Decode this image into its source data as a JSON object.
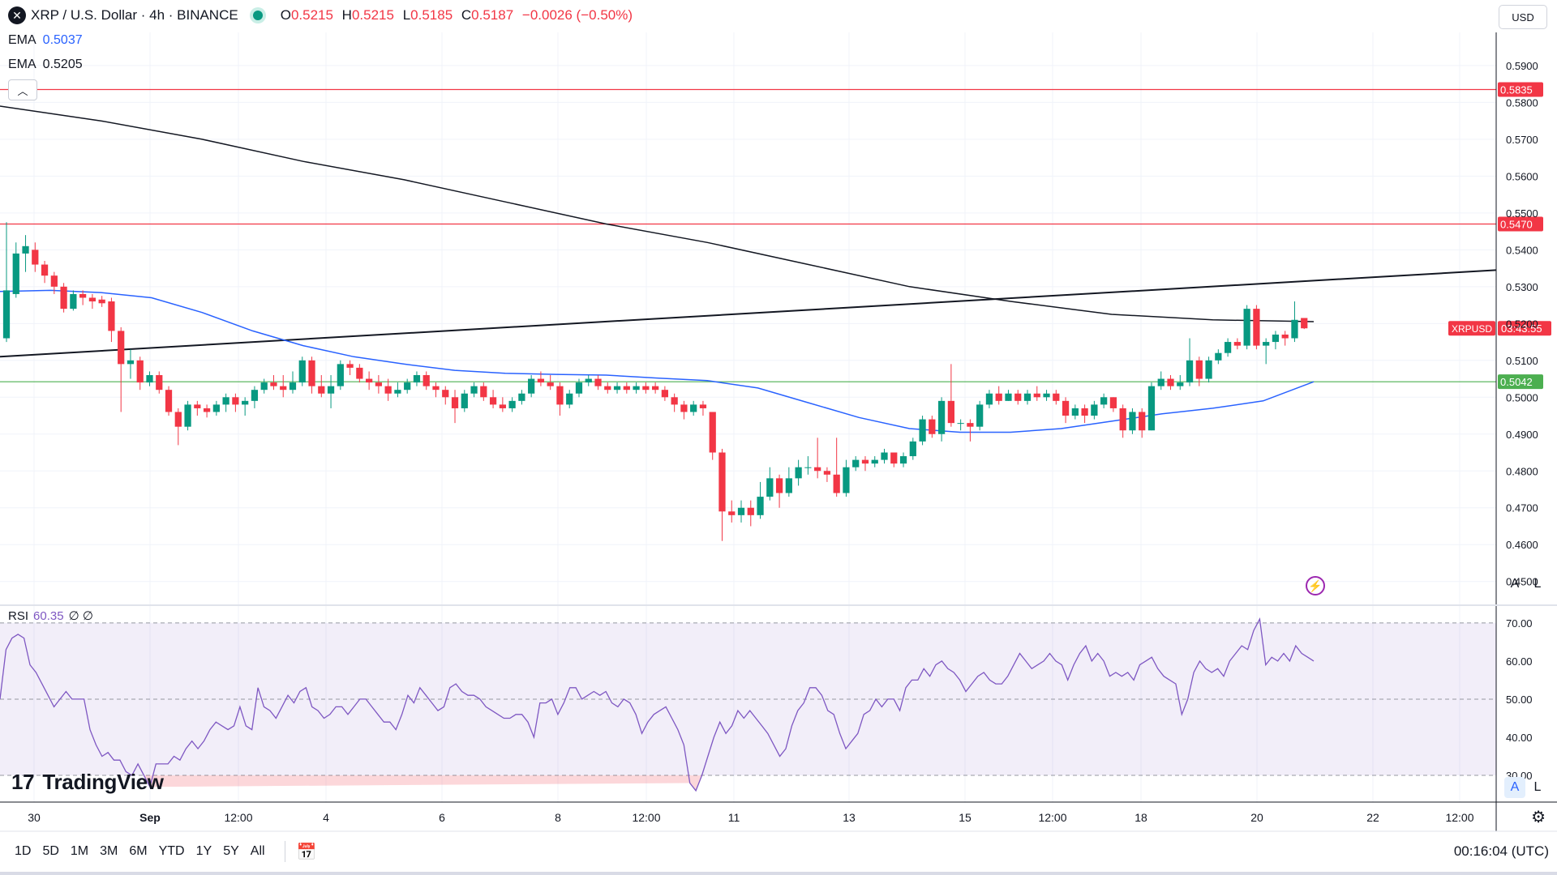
{
  "header": {
    "symbol_icon": "x-xrp-icon",
    "title": "XRP / U.S. Dollar · 4h · BINANCE",
    "open_label": "O",
    "open": "0.5215",
    "high_label": "H",
    "high": "0.5215",
    "low_label": "L",
    "low": "0.5185",
    "close_label": "C",
    "close": "0.5187",
    "change": "−0.0026 (−0.50%)",
    "currency": "USD"
  },
  "indicators": {
    "ema1": {
      "name": "EMA",
      "value": "0.5037",
      "color": "#2962ff"
    },
    "ema2": {
      "name": "EMA",
      "value": "0.5205",
      "color": "#131722"
    }
  },
  "rsi_legend": {
    "name": "RSI",
    "value": "60.35",
    "extra1": "∅",
    "extra2": "∅"
  },
  "price_labels": {
    "r1": "0.5835",
    "r2": "0.5470",
    "s1": "0.5042",
    "symbol": "XRPUSD",
    "countdown": "03:43:55"
  },
  "toolbar": {
    "ranges": [
      "1D",
      "5D",
      "1M",
      "3M",
      "6M",
      "YTD",
      "1Y",
      "5Y",
      "All"
    ],
    "clock": "00:16:04 (UTC)",
    "auto": "A",
    "log": "L"
  },
  "brand": "TradingView",
  "colors": {
    "up": "#089981",
    "down": "#f23645",
    "resistance": "#f23645",
    "support": "#4caf50",
    "ema_fast": "#2962ff",
    "ema_slow": "#131722",
    "rsi": "#7e57c2"
  },
  "chart_data": [
    {
      "type": "candlestick",
      "y_ticks": [
        "0.5900",
        "0.5800",
        "0.5700",
        "0.5600",
        "0.5500",
        "0.5400",
        "0.5300",
        "0.5200",
        "0.5100",
        "0.5000",
        "0.4900",
        "0.4800",
        "0.4700",
        "0.4600",
        "0.4500"
      ],
      "ylim": [
        0.444,
        0.599
      ],
      "x_ticks": [
        "30",
        "Sep",
        "12:00",
        "4",
        "6",
        "8",
        "12:00",
        "11",
        "13",
        "15",
        "12:00",
        "18",
        "20",
        "22",
        "12:00"
      ],
      "horizontal_levels": [
        0.5835,
        0.547,
        0.5042
      ],
      "ema_fast": [
        0.5287,
        0.529,
        0.5284,
        0.527,
        0.523,
        0.518,
        0.514,
        0.511,
        0.509,
        0.5073,
        0.5065,
        0.5062,
        0.506,
        0.5052,
        0.5045,
        0.5025,
        0.4985,
        0.4945,
        0.4915,
        0.4905,
        0.4905,
        0.4915,
        0.4935,
        0.4955,
        0.497,
        0.499,
        0.5042
      ],
      "ema_slow": [
        0.579,
        0.575,
        0.57,
        0.564,
        0.559,
        0.553,
        0.547,
        0.542,
        0.536,
        0.53,
        0.526,
        0.5225,
        0.521,
        0.5205
      ],
      "trendline": [
        0.511,
        0.5345
      ],
      "candles": [
        [
          0.516,
          0.529,
          0.515,
          0.5475
        ],
        [
          0.528,
          0.539,
          0.527,
          0.542
        ],
        [
          0.539,
          0.541,
          0.534,
          0.544
        ],
        [
          0.54,
          0.536,
          0.534,
          0.542
        ],
        [
          0.536,
          0.533,
          0.531,
          0.537
        ],
        [
          0.533,
          0.53,
          0.528,
          0.534
        ],
        [
          0.53,
          0.524,
          0.523,
          0.531
        ],
        [
          0.524,
          0.528,
          0.5235,
          0.529
        ],
        [
          0.528,
          0.527,
          0.525,
          0.529
        ],
        [
          0.527,
          0.526,
          0.524,
          0.528
        ],
        [
          0.5265,
          0.5255,
          0.5245,
          0.5275
        ],
        [
          0.526,
          0.518,
          0.515,
          0.527
        ],
        [
          0.518,
          0.509,
          0.496,
          0.519
        ],
        [
          0.509,
          0.51,
          0.505,
          0.513
        ],
        [
          0.51,
          0.504,
          0.502,
          0.511
        ],
        [
          0.504,
          0.506,
          0.503,
          0.507
        ],
        [
          0.506,
          0.502,
          0.501,
          0.507
        ],
        [
          0.502,
          0.496,
          0.495,
          0.503
        ],
        [
          0.496,
          0.492,
          0.487,
          0.497
        ],
        [
          0.492,
          0.498,
          0.491,
          0.499
        ],
        [
          0.498,
          0.497,
          0.495,
          0.499
        ],
        [
          0.497,
          0.496,
          0.4945,
          0.498
        ],
        [
          0.496,
          0.498,
          0.495,
          0.499
        ],
        [
          0.498,
          0.5,
          0.496,
          0.501
        ],
        [
          0.5,
          0.498,
          0.496,
          0.501
        ],
        [
          0.498,
          0.499,
          0.495,
          0.5
        ],
        [
          0.499,
          0.502,
          0.497,
          0.503
        ],
        [
          0.502,
          0.504,
          0.501,
          0.505
        ],
        [
          0.504,
          0.503,
          0.502,
          0.506
        ],
        [
          0.503,
          0.502,
          0.5,
          0.506
        ],
        [
          0.502,
          0.504,
          0.501,
          0.507
        ],
        [
          0.504,
          0.51,
          0.503,
          0.511
        ],
        [
          0.51,
          0.503,
          0.501,
          0.511
        ],
        [
          0.503,
          0.501,
          0.5,
          0.506
        ],
        [
          0.501,
          0.503,
          0.497,
          0.506
        ],
        [
          0.503,
          0.509,
          0.502,
          0.51
        ],
        [
          0.509,
          0.508,
          0.506,
          0.51
        ],
        [
          0.508,
          0.505,
          0.504,
          0.509
        ],
        [
          0.505,
          0.504,
          0.502,
          0.507
        ],
        [
          0.504,
          0.503,
          0.501,
          0.506
        ],
        [
          0.503,
          0.501,
          0.499,
          0.505
        ],
        [
          0.501,
          0.502,
          0.5,
          0.504
        ],
        [
          0.502,
          0.504,
          0.501,
          0.505
        ],
        [
          0.504,
          0.506,
          0.503,
          0.507
        ],
        [
          0.506,
          0.503,
          0.502,
          0.507
        ],
        [
          0.503,
          0.502,
          0.5,
          0.504
        ],
        [
          0.502,
          0.5,
          0.498,
          0.503
        ],
        [
          0.5,
          0.497,
          0.493,
          0.502
        ],
        [
          0.497,
          0.501,
          0.496,
          0.502
        ],
        [
          0.501,
          0.503,
          0.5,
          0.504
        ],
        [
          0.503,
          0.5,
          0.499,
          0.504
        ],
        [
          0.5,
          0.498,
          0.497,
          0.502
        ],
        [
          0.498,
          0.497,
          0.496,
          0.5
        ],
        [
          0.497,
          0.499,
          0.496,
          0.5
        ],
        [
          0.499,
          0.501,
          0.498,
          0.502
        ],
        [
          0.501,
          0.505,
          0.5,
          0.506
        ],
        [
          0.505,
          0.504,
          0.503,
          0.507
        ],
        [
          0.504,
          0.503,
          0.502,
          0.506
        ],
        [
          0.503,
          0.498,
          0.495,
          0.504
        ],
        [
          0.498,
          0.501,
          0.497,
          0.502
        ],
        [
          0.501,
          0.504,
          0.5,
          0.505
        ],
        [
          0.504,
          0.505,
          0.503,
          0.506
        ],
        [
          0.505,
          0.503,
          0.502,
          0.506
        ],
        [
          0.503,
          0.502,
          0.501,
          0.504
        ],
        [
          0.502,
          0.503,
          0.501,
          0.504
        ],
        [
          0.503,
          0.502,
          0.501,
          0.504
        ],
        [
          0.502,
          0.503,
          0.501,
          0.504
        ],
        [
          0.503,
          0.502,
          0.501,
          0.504
        ],
        [
          0.503,
          0.502,
          0.501,
          0.504
        ],
        [
          0.502,
          0.5,
          0.499,
          0.503
        ],
        [
          0.5,
          0.498,
          0.496,
          0.501
        ],
        [
          0.498,
          0.496,
          0.494,
          0.499
        ],
        [
          0.496,
          0.498,
          0.495,
          0.499
        ],
        [
          0.498,
          0.497,
          0.495,
          0.499
        ],
        [
          0.496,
          0.485,
          0.483,
          0.496
        ],
        [
          0.485,
          0.469,
          0.461,
          0.486
        ],
        [
          0.469,
          0.468,
          0.466,
          0.472
        ],
        [
          0.468,
          0.47,
          0.466,
          0.472
        ],
        [
          0.47,
          0.468,
          0.465,
          0.472
        ],
        [
          0.468,
          0.473,
          0.467,
          0.477
        ],
        [
          0.473,
          0.478,
          0.472,
          0.481
        ],
        [
          0.478,
          0.474,
          0.47,
          0.479
        ],
        [
          0.474,
          0.478,
          0.473,
          0.481
        ],
        [
          0.478,
          0.481,
          0.476,
          0.483
        ],
        [
          0.481,
          0.481,
          0.479,
          0.484
        ],
        [
          0.481,
          0.48,
          0.478,
          0.489
        ],
        [
          0.48,
          0.479,
          0.477,
          0.481
        ],
        [
          0.479,
          0.474,
          0.473,
          0.489
        ],
        [
          0.474,
          0.481,
          0.473,
          0.483
        ],
        [
          0.481,
          0.483,
          0.48,
          0.484
        ],
        [
          0.483,
          0.482,
          0.48,
          0.484
        ],
        [
          0.482,
          0.483,
          0.481,
          0.484
        ],
        [
          0.483,
          0.485,
          0.482,
          0.486
        ],
        [
          0.485,
          0.482,
          0.481,
          0.485
        ],
        [
          0.482,
          0.484,
          0.481,
          0.485
        ],
        [
          0.484,
          0.488,
          0.483,
          0.489
        ],
        [
          0.488,
          0.494,
          0.487,
          0.495
        ],
        [
          0.494,
          0.49,
          0.489,
          0.495
        ],
        [
          0.49,
          0.499,
          0.488,
          0.5
        ],
        [
          0.499,
          0.493,
          0.492,
          0.509
        ],
        [
          0.493,
          0.493,
          0.491,
          0.494
        ],
        [
          0.493,
          0.492,
          0.488,
          0.494
        ],
        [
          0.492,
          0.498,
          0.491,
          0.499
        ],
        [
          0.498,
          0.501,
          0.497,
          0.502
        ],
        [
          0.501,
          0.499,
          0.498,
          0.503
        ],
        [
          0.499,
          0.501,
          0.499,
          0.502
        ],
        [
          0.501,
          0.499,
          0.498,
          0.502
        ],
        [
          0.499,
          0.501,
          0.498,
          0.502
        ],
        [
          0.501,
          0.5,
          0.499,
          0.503
        ],
        [
          0.5,
          0.501,
          0.499,
          0.502
        ],
        [
          0.501,
          0.499,
          0.498,
          0.502
        ],
        [
          0.499,
          0.495,
          0.493,
          0.5
        ],
        [
          0.495,
          0.497,
          0.494,
          0.498
        ],
        [
          0.497,
          0.495,
          0.493,
          0.498
        ],
        [
          0.495,
          0.498,
          0.494,
          0.499
        ],
        [
          0.498,
          0.5,
          0.497,
          0.501
        ],
        [
          0.5,
          0.497,
          0.496,
          0.5
        ],
        [
          0.497,
          0.491,
          0.489,
          0.498
        ],
        [
          0.491,
          0.496,
          0.49,
          0.497
        ],
        [
          0.496,
          0.491,
          0.489,
          0.497
        ],
        [
          0.491,
          0.503,
          0.491,
          0.504
        ],
        [
          0.503,
          0.505,
          0.502,
          0.507
        ],
        [
          0.505,
          0.503,
          0.502,
          0.506
        ],
        [
          0.503,
          0.504,
          0.502,
          0.506
        ],
        [
          0.504,
          0.51,
          0.503,
          0.516
        ],
        [
          0.51,
          0.505,
          0.503,
          0.511
        ],
        [
          0.505,
          0.51,
          0.504,
          0.511
        ],
        [
          0.51,
          0.512,
          0.509,
          0.513
        ],
        [
          0.512,
          0.515,
          0.511,
          0.516
        ],
        [
          0.515,
          0.514,
          0.513,
          0.516
        ],
        [
          0.514,
          0.524,
          0.513,
          0.525
        ],
        [
          0.524,
          0.514,
          0.513,
          0.525
        ],
        [
          0.514,
          0.515,
          0.509,
          0.516
        ],
        [
          0.515,
          0.517,
          0.513,
          0.518
        ],
        [
          0.517,
          0.516,
          0.514,
          0.518
        ],
        [
          0.516,
          0.521,
          0.515,
          0.526
        ],
        [
          0.5215,
          0.5187,
          0.5185,
          0.5215
        ]
      ]
    },
    {
      "type": "line",
      "name": "RSI",
      "y_ticks": [
        "70.00",
        "60.00",
        "50.00",
        "40.00",
        "30.00"
      ],
      "levels": [
        70,
        50,
        30
      ],
      "ylim": [
        23,
        74
      ],
      "values": [
        50,
        63,
        66,
        67,
        66,
        59,
        57,
        54,
        51,
        48,
        50,
        52,
        50,
        50,
        50,
        42,
        38,
        35,
        36,
        34,
        34,
        31,
        30,
        33,
        30,
        27,
        33,
        33,
        33,
        35,
        34,
        37,
        39,
        37,
        39,
        42,
        44,
        43,
        42,
        43,
        48,
        43,
        42,
        53,
        48,
        47,
        45,
        48,
        51,
        49,
        52,
        53,
        48,
        47,
        45,
        46,
        48,
        48,
        46,
        48,
        50,
        50,
        48,
        46,
        44,
        44,
        42,
        46,
        51,
        49,
        53,
        51,
        49,
        47,
        48,
        53,
        54,
        52,
        51,
        51,
        50,
        48,
        47,
        46,
        45,
        45,
        46,
        46,
        44,
        40,
        49,
        49,
        50,
        46,
        49,
        53,
        53,
        50,
        51,
        52,
        51,
        52,
        49,
        48,
        50,
        49,
        46,
        41,
        44,
        46,
        47,
        48,
        45,
        42,
        38,
        28,
        26,
        30,
        35,
        40,
        44,
        41,
        43,
        47,
        45,
        47,
        45,
        43,
        41,
        38,
        35,
        37,
        43,
        47,
        49,
        53,
        53,
        51,
        47,
        46,
        41,
        37,
        39,
        41,
        46,
        47,
        50,
        48,
        50,
        50,
        47,
        53,
        55,
        55,
        58,
        56,
        59,
        60,
        58,
        57,
        55,
        52,
        54,
        56,
        57,
        55,
        54,
        54,
        56,
        59,
        62,
        60,
        58,
        59,
        60,
        62,
        60,
        59,
        55,
        59,
        62,
        64,
        60,
        62,
        60,
        56,
        57,
        56,
        57,
        55,
        59,
        60,
        61,
        58,
        56,
        55,
        54,
        46,
        50,
        57,
        60,
        58,
        57,
        58,
        56,
        60,
        62,
        64,
        63,
        68,
        71,
        59,
        61,
        60,
        62,
        60,
        64,
        62,
        61,
        60
      ]
    }
  ]
}
